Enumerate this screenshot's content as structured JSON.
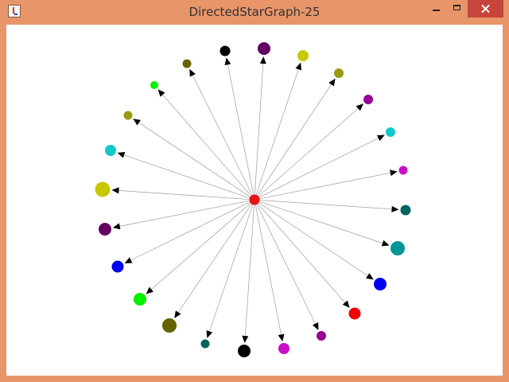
{
  "window": {
    "title": "DirectedStarGraph-25"
  },
  "graph": {
    "center_color": "#E81010",
    "edge_color": "#A8A8A8",
    "arrow_color": "#000000",
    "leaves": [
      {
        "color": "#640064"
      },
      {
        "color": "#C8C800"
      },
      {
        "color": "#9A9A10"
      },
      {
        "color": "#960096"
      },
      {
        "color": "#10C8C8"
      },
      {
        "color": "#C810C8"
      },
      {
        "color": "#006464"
      },
      {
        "color": "#009696"
      },
      {
        "color": "#0000F0"
      },
      {
        "color": "#F00000"
      },
      {
        "color": "#960096"
      },
      {
        "color": "#C810C8"
      },
      {
        "color": "#000000"
      },
      {
        "color": "#006464"
      },
      {
        "color": "#646400"
      },
      {
        "color": "#00F000"
      },
      {
        "color": "#0000F0"
      },
      {
        "color": "#640064"
      },
      {
        "color": "#C8C800"
      },
      {
        "color": "#10C8C8"
      },
      {
        "color": "#9A9A10"
      },
      {
        "color": "#00F000"
      },
      {
        "color": "#646400"
      },
      {
        "color": "#000000"
      }
    ]
  }
}
